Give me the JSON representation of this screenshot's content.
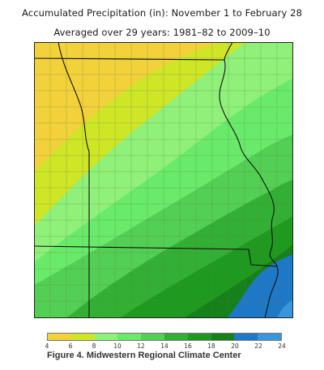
{
  "header": {
    "title": "Accumulated Precipitation (in): November 1 to February 28",
    "subtitle": "Averaged over 29 years: 1981–82 to 2009–10"
  },
  "legend": {
    "ticks": [
      "4",
      "6",
      "8",
      "10",
      "12",
      "14",
      "16",
      "18",
      "20",
      "22",
      "24"
    ],
    "colors": [
      "#f2d13a",
      "#cfe627",
      "#8ff07a",
      "#6aea6a",
      "#53cf53",
      "#33b033",
      "#1f9a1f",
      "#16801a",
      "#1e78c8",
      "#3a96dc",
      "#56b4ee"
    ]
  },
  "caption": "Figure 4. Midwestern Regional Climate Center"
}
